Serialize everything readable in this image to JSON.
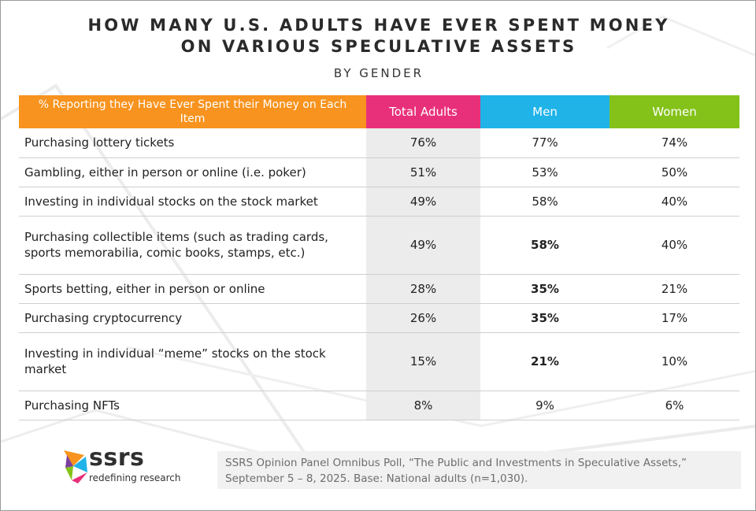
{
  "title_line1": "HOW MANY U.S. ADULTS HAVE EVER SPENT MONEY",
  "title_line2": "ON VARIOUS SPECULATIVE ASSETS",
  "subtitle": "BY GENDER",
  "colors": {
    "header_item": "#f7931e",
    "header_total": "#e8307a",
    "header_men": "#1fb3e8",
    "header_women": "#84c21a",
    "total_column_bg": "#ececec"
  },
  "chart_data": {
    "type": "table",
    "title": "HOW MANY U.S. ADULTS HAVE EVER SPENT MONEY ON VARIOUS SPECULATIVE ASSETS",
    "subtitle": "BY GENDER",
    "headers": [
      "% Reporting they Have Ever Spent their Money on Each Item",
      "Total Adults",
      "Men",
      "Women"
    ],
    "rows": [
      {
        "item": "Purchasing lottery tickets",
        "total": "76%",
        "men": "77%",
        "women": "74%",
        "men_bold": false,
        "tall": false
      },
      {
        "item": "Gambling, either in person or online (i.e. poker)",
        "total": "51%",
        "men": "53%",
        "women": "50%",
        "men_bold": false,
        "tall": false
      },
      {
        "item": "Investing in individual stocks on the stock market",
        "total": "49%",
        "men": "58%",
        "women": "40%",
        "men_bold": false,
        "tall": false
      },
      {
        "item": "Purchasing collectible items (such as trading cards, sports memorabilia, comic books, stamps, etc.)",
        "total": "49%",
        "men": "58%",
        "women": "40%",
        "men_bold": true,
        "tall": true
      },
      {
        "item": "Sports betting, either in person or online",
        "total": "28%",
        "men": "35%",
        "women": "21%",
        "men_bold": true,
        "tall": false
      },
      {
        "item": "Purchasing cryptocurrency",
        "total": "26%",
        "men": "35%",
        "women": "17%",
        "men_bold": true,
        "tall": false
      },
      {
        "item": "Investing in individual “meme” stocks on the stock market",
        "total": "15%",
        "men": "21%",
        "women": "10%",
        "men_bold": true,
        "tall": true
      },
      {
        "item": "Purchasing NFTs",
        "total": "8%",
        "men": "9%",
        "women": "6%",
        "men_bold": false,
        "tall": false
      }
    ]
  },
  "logo": {
    "wordmark": "ssrs",
    "tagline": "redefining research",
    "icon": "ssrs-logo-icon"
  },
  "source_note": "SSRS Opinion Panel Omnibus Poll, “The Public and Investments in Speculative Assets,” September 5 – 8, 2025. Base: National adults (n=1,030)."
}
